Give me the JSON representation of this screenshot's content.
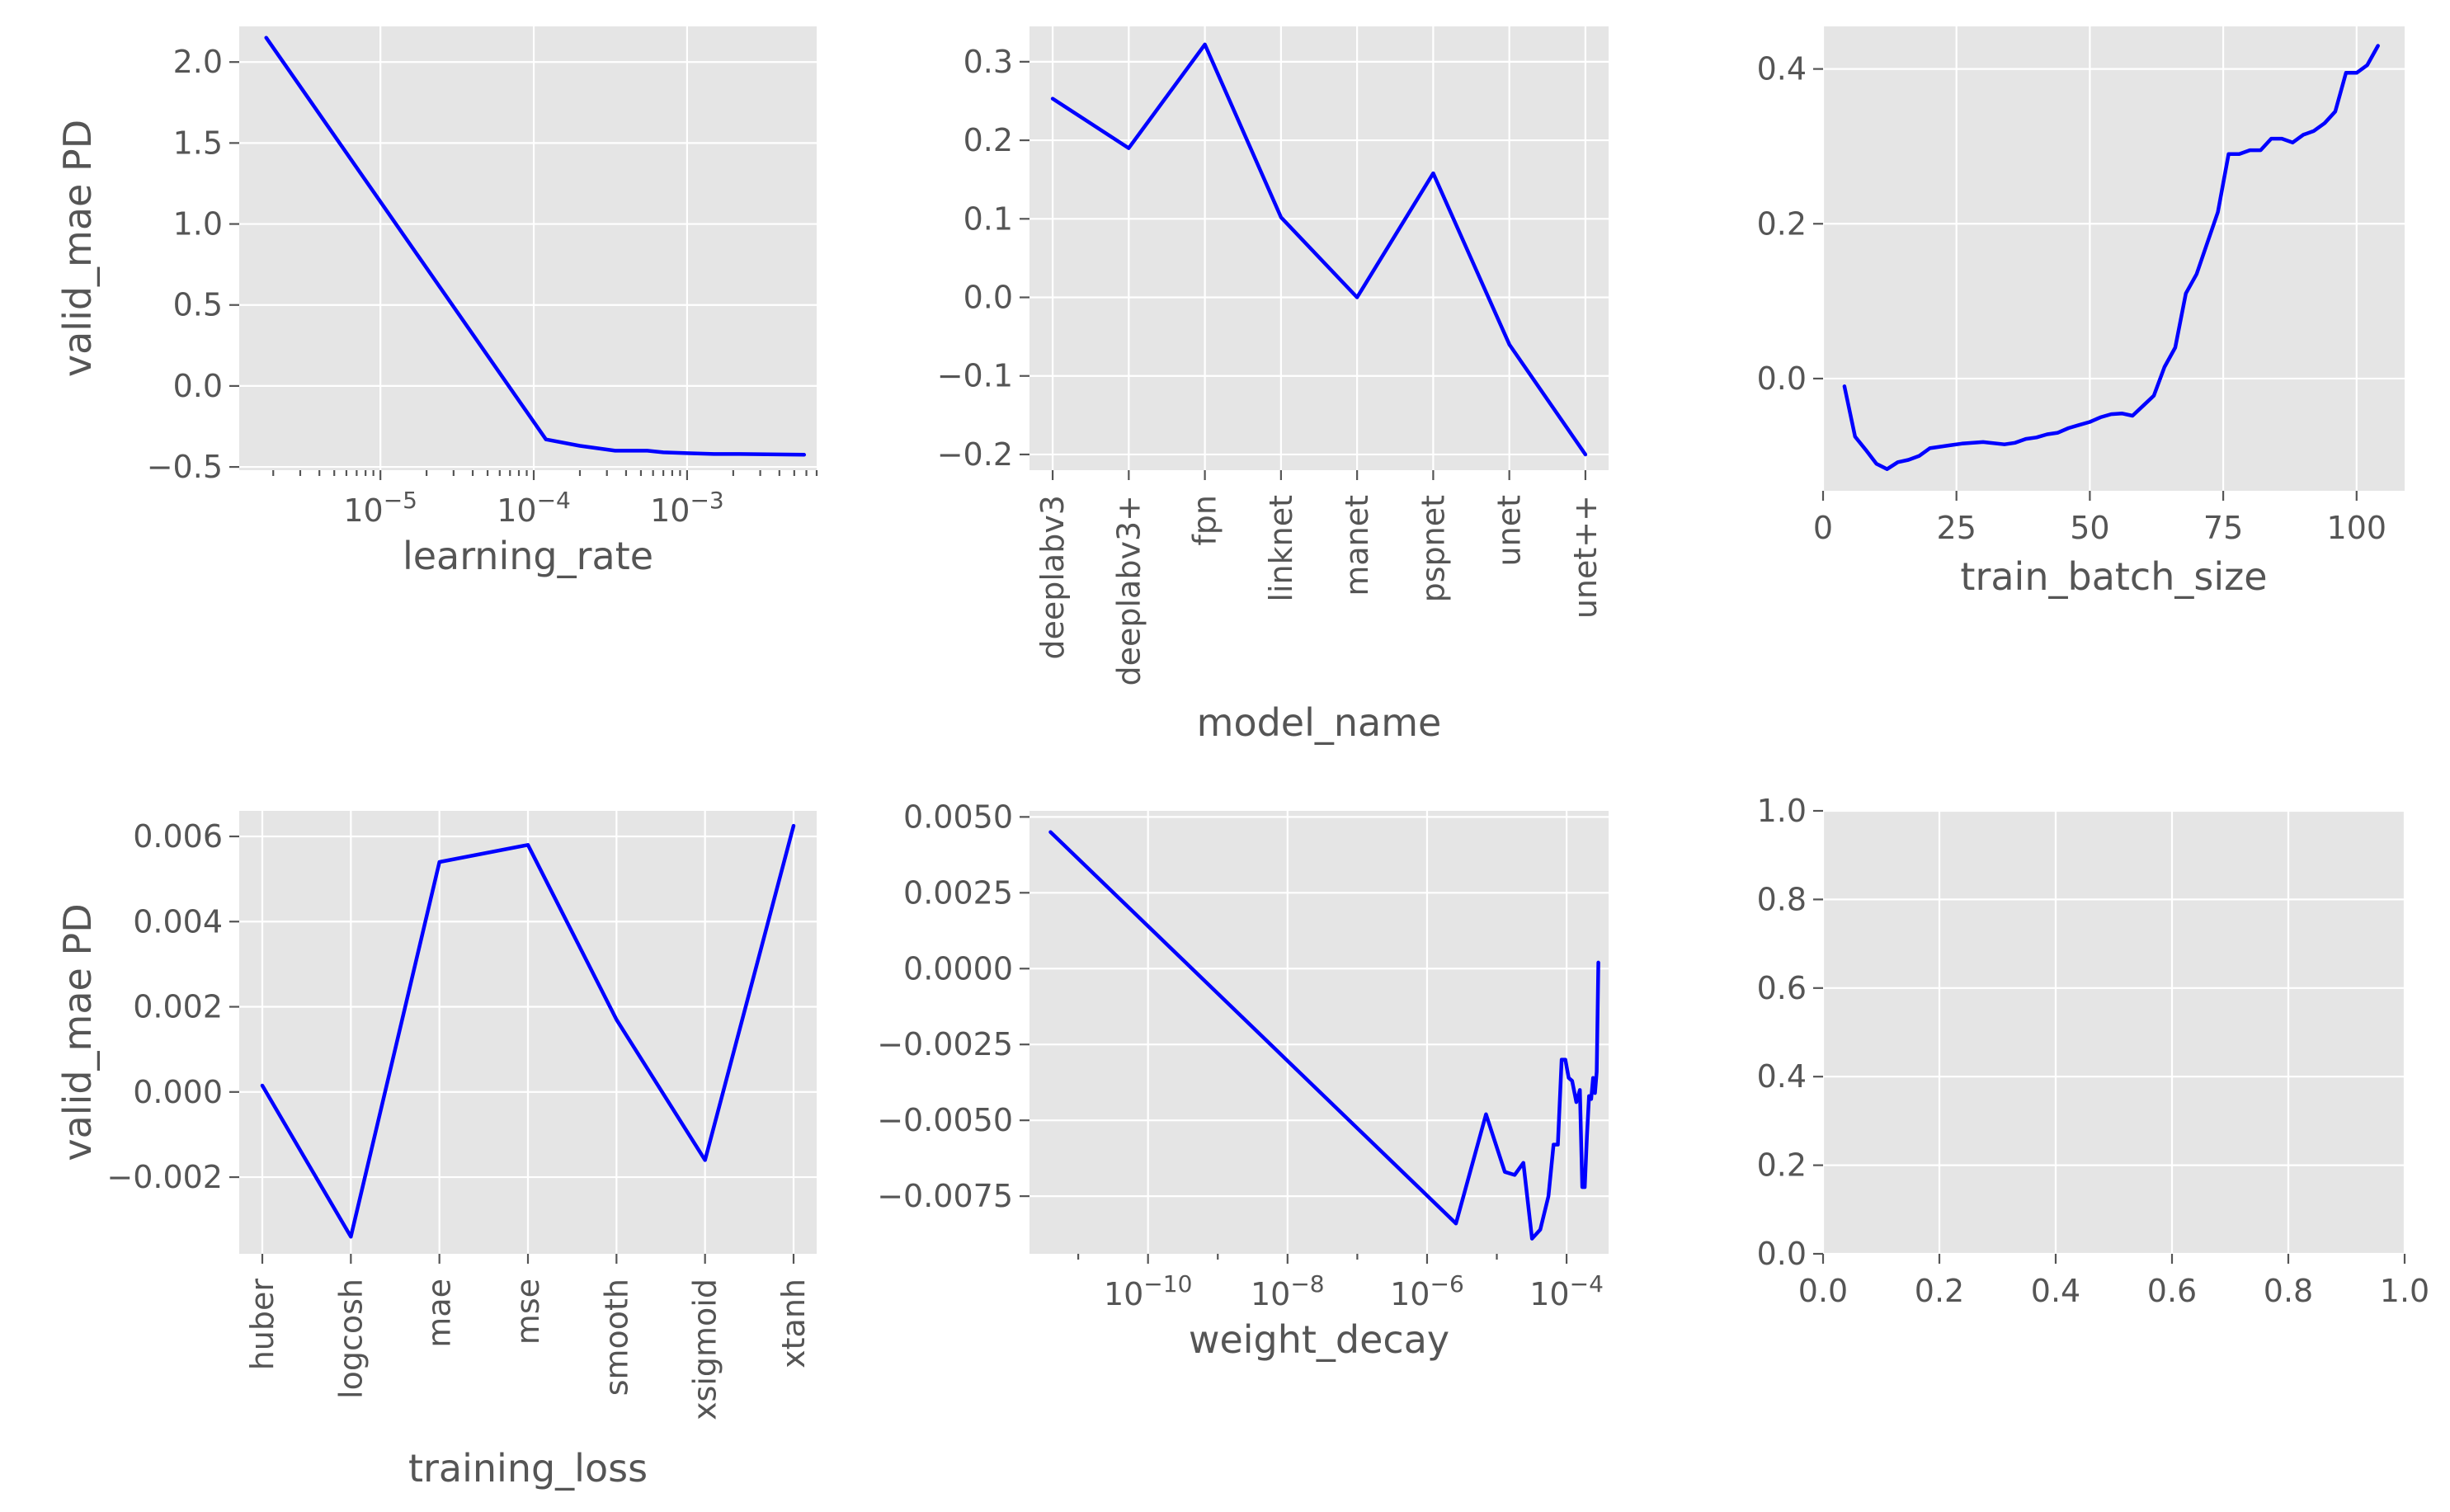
{
  "colors": {
    "panel_background": "#e5e5e5",
    "grid": "#ffffff",
    "line": "#0000ff",
    "text": "#555555"
  },
  "chart_data": [
    {
      "id": "learning-rate",
      "type": "line",
      "xscale": "log",
      "xlabel": "learning_rate",
      "ylabel": "valid_mae PD",
      "xlim": [
        1.2e-06,
        0.007
      ],
      "ylim": [
        -0.52,
        2.22
      ],
      "xticks": [
        {
          "value": 1e-05,
          "base": "10",
          "exp": "−5"
        },
        {
          "value": 0.0001,
          "base": "10",
          "exp": "−4"
        },
        {
          "value": 0.001,
          "base": "10",
          "exp": "−3"
        }
      ],
      "yticks": [
        {
          "value": -0.5,
          "label": "−0.5"
        },
        {
          "value": 0.0,
          "label": "0.0"
        },
        {
          "value": 0.5,
          "label": "0.5"
        },
        {
          "value": 1.0,
          "label": "1.0"
        },
        {
          "value": 1.5,
          "label": "1.5"
        },
        {
          "value": 2.0,
          "label": "2.0"
        }
      ],
      "series": [
        {
          "x": [
            1.8e-06,
            0.00012,
            0.0002,
            0.00034,
            0.00055,
            0.0007,
            0.001,
            0.0015,
            0.0022,
            0.0058
          ],
          "y": [
            2.15,
            -0.33,
            -0.37,
            -0.4,
            -0.4,
            -0.41,
            -0.415,
            -0.42,
            -0.42,
            -0.425
          ]
        }
      ]
    },
    {
      "id": "model-name",
      "type": "line",
      "xlabel": "model_name",
      "ylabel": "",
      "categories": [
        "deeplabv3",
        "deeplabv3+",
        "fpn",
        "linknet",
        "manet",
        "pspnet",
        "unet",
        "unet++"
      ],
      "ylim": [
        -0.22,
        0.345
      ],
      "yticks": [
        {
          "value": -0.2,
          "label": "−0.2"
        },
        {
          "value": -0.1,
          "label": "−0.1"
        },
        {
          "value": 0.0,
          "label": "0.0"
        },
        {
          "value": 0.1,
          "label": "0.1"
        },
        {
          "value": 0.2,
          "label": "0.2"
        },
        {
          "value": 0.3,
          "label": "0.3"
        }
      ],
      "series": [
        {
          "y": [
            0.253,
            0.19,
            0.322,
            0.102,
            0.0,
            0.158,
            -0.06,
            -0.2
          ]
        }
      ]
    },
    {
      "id": "train-batch-size",
      "type": "line",
      "xlabel": "train_batch_size",
      "ylabel": "",
      "xlim": [
        0,
        109
      ],
      "ylim": [
        -0.145,
        0.455
      ],
      "xticks": [
        {
          "value": 0,
          "label": "0"
        },
        {
          "value": 25,
          "label": "25"
        },
        {
          "value": 50,
          "label": "50"
        },
        {
          "value": 75,
          "label": "75"
        },
        {
          "value": 100,
          "label": "100"
        }
      ],
      "yticks": [
        {
          "value": 0.0,
          "label": "0.0"
        },
        {
          "value": 0.2,
          "label": "0.2"
        },
        {
          "value": 0.4,
          "label": "0.4"
        }
      ],
      "series": [
        {
          "x": [
            4,
            6,
            8,
            10,
            12,
            14,
            16,
            18,
            20,
            24,
            26,
            30,
            34,
            36,
            38,
            40,
            42,
            44,
            46,
            48,
            50,
            52,
            54,
            56,
            58,
            60,
            62,
            64,
            66,
            68,
            70,
            72,
            74,
            76,
            78,
            80,
            82,
            84,
            86,
            88,
            90,
            92,
            94,
            96,
            98,
            100,
            102,
            104
          ],
          "y": [
            -0.01,
            -0.075,
            -0.092,
            -0.11,
            -0.117,
            -0.108,
            -0.105,
            -0.1,
            -0.09,
            -0.086,
            -0.084,
            -0.082,
            -0.085,
            -0.083,
            -0.078,
            -0.076,
            -0.072,
            -0.07,
            -0.064,
            -0.06,
            -0.056,
            -0.05,
            -0.046,
            -0.045,
            -0.048,
            -0.035,
            -0.022,
            0.015,
            0.04,
            0.11,
            0.135,
            0.175,
            0.215,
            0.29,
            0.29,
            0.295,
            0.295,
            0.31,
            0.31,
            0.305,
            0.315,
            0.32,
            0.33,
            0.345,
            0.395,
            0.395,
            0.405,
            0.43
          ]
        }
      ]
    },
    {
      "id": "training-loss",
      "type": "line",
      "xlabel": "training_loss",
      "ylabel": "valid_mae PD",
      "categories": [
        "huber",
        "logcosh",
        "mae",
        "mse",
        "smooth",
        "xsigmoid",
        "xtanh"
      ],
      "ylim": [
        -0.0038,
        0.0066
      ],
      "yticks": [
        {
          "value": -0.002,
          "label": "−0.002"
        },
        {
          "value": 0.0,
          "label": "0.000"
        },
        {
          "value": 0.002,
          "label": "0.002"
        },
        {
          "value": 0.004,
          "label": "0.004"
        },
        {
          "value": 0.006,
          "label": "0.006"
        }
      ],
      "series": [
        {
          "y": [
            0.00015,
            -0.0034,
            0.0054,
            0.0058,
            0.0017,
            -0.0016,
            0.00625
          ]
        }
      ]
    },
    {
      "id": "weight-decay",
      "type": "line",
      "xscale": "log",
      "xlabel": "weight_decay",
      "ylabel": "",
      "xlim": [
        2e-12,
        0.0004
      ],
      "ylim": [
        -0.0094,
        0.0052
      ],
      "xticks": [
        {
          "value": 1e-10,
          "base": "10",
          "exp": "−10"
        },
        {
          "value": 1e-08,
          "base": "10",
          "exp": "−8"
        },
        {
          "value": 1e-06,
          "base": "10",
          "exp": "−6"
        },
        {
          "value": 0.0001,
          "base": "10",
          "exp": "−4"
        }
      ],
      "yticks": [
        {
          "value": -0.0075,
          "label": "−0.0075"
        },
        {
          "value": -0.005,
          "label": "−0.0050"
        },
        {
          "value": -0.0025,
          "label": "−0.0025"
        },
        {
          "value": 0.0,
          "label": "0.0000"
        },
        {
          "value": 0.0025,
          "label": "0.0025"
        },
        {
          "value": 0.005,
          "label": "0.0050"
        }
      ],
      "series": [
        {
          "x": [
            4e-12,
            2.6e-06,
            7e-06,
            1.3e-05,
            1.8e-05,
            2.4e-05,
            3.2e-05,
            4.2e-05,
            5.5e-05,
            6.5e-05,
            7.5e-05,
            8.5e-05,
            9.6e-05,
            0.000107,
            0.00012,
            0.000138,
            0.000155,
            0.000168,
            0.000182,
            0.000196,
            0.00021,
            0.000225,
            0.00024,
            0.000255,
            0.00027,
            0.000285
          ],
          "y": [
            0.0045,
            -0.0084,
            -0.0048,
            -0.0067,
            -0.0068,
            -0.0064,
            -0.0089,
            -0.0086,
            -0.0075,
            -0.0058,
            -0.0058,
            -0.003,
            -0.003,
            -0.0036,
            -0.0037,
            -0.0044,
            -0.004,
            -0.0072,
            -0.0072,
            -0.0055,
            -0.0042,
            -0.0043,
            -0.0036,
            -0.0041,
            -0.0034,
            0.0002
          ]
        }
      ]
    },
    {
      "id": "empty",
      "type": "line",
      "xlabel": "",
      "ylabel": "",
      "xlim": [
        0,
        1
      ],
      "ylim": [
        0,
        1
      ],
      "xticks": [
        {
          "value": 0.0,
          "label": "0.0"
        },
        {
          "value": 0.2,
          "label": "0.2"
        },
        {
          "value": 0.4,
          "label": "0.4"
        },
        {
          "value": 0.6,
          "label": "0.6"
        },
        {
          "value": 0.8,
          "label": "0.8"
        },
        {
          "value": 1.0,
          "label": "1.0"
        }
      ],
      "yticks": [
        {
          "value": 0.0,
          "label": "0.0"
        },
        {
          "value": 0.2,
          "label": "0.2"
        },
        {
          "value": 0.4,
          "label": "0.4"
        },
        {
          "value": 0.6,
          "label": "0.6"
        },
        {
          "value": 0.8,
          "label": "0.8"
        },
        {
          "value": 1.0,
          "label": "1.0"
        }
      ],
      "series": []
    }
  ]
}
